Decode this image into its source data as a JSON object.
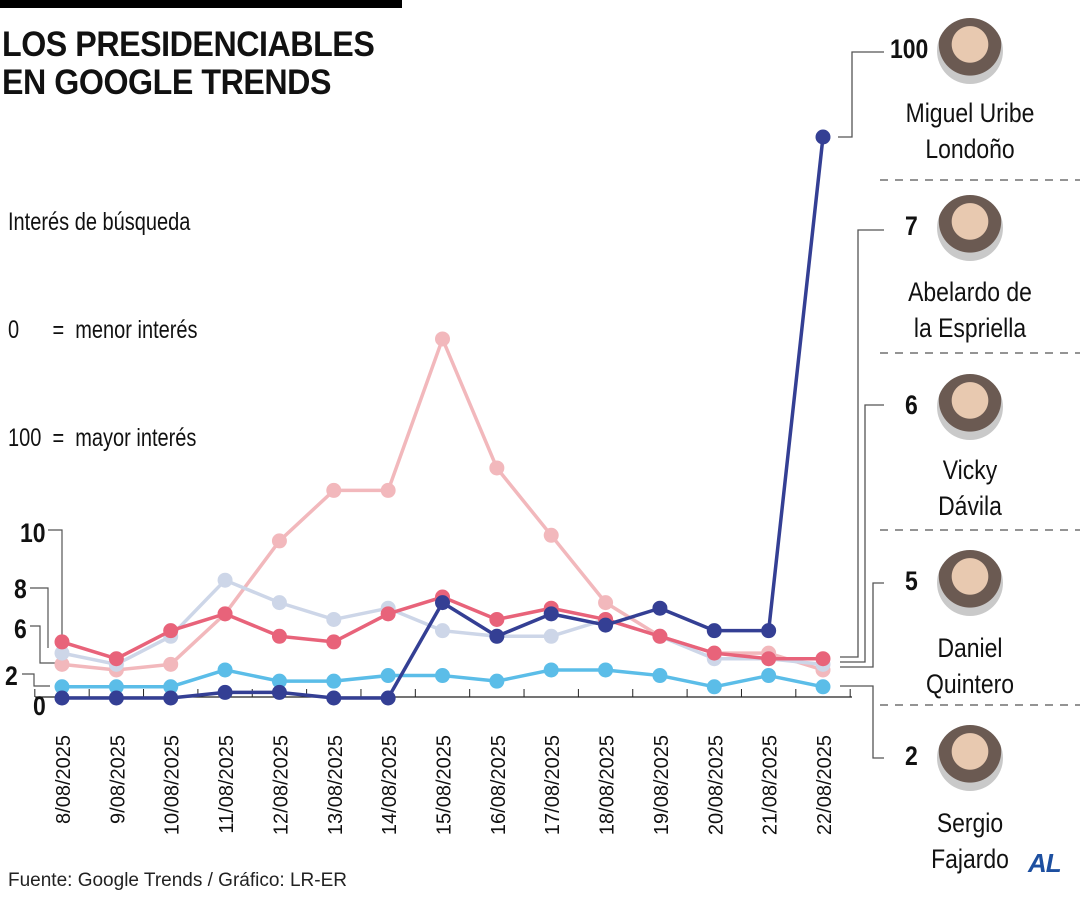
{
  "title_lines": [
    "LOS PRESIDENCIABLES",
    "EN GOOGLE TRENDS"
  ],
  "legend_lines": [
    "Interés de búsqueda",
    "0      =  menor interés",
    "100  =  mayor interés"
  ],
  "source": "Fuente: Google Trends / Gráfico: LR-ER",
  "logo": "AL",
  "chart_data": {
    "type": "line",
    "title": "LOS PRESIDENCIABLES EN GOOGLE TRENDS",
    "ylabel": "Interés de búsqueda",
    "ylim": [
      0,
      100
    ],
    "grid": false,
    "categories": [
      "8/08/2025",
      "9/08/2025",
      "10/08/2025",
      "11/08/2025",
      "12/08/2025",
      "13/08/2025",
      "14/08/2025",
      "15/08/2025",
      "16/08/2025",
      "17/08/2025",
      "18/08/2025",
      "19/08/2025",
      "20/08/2025",
      "21/08/2025",
      "22/08/2025"
    ],
    "start_labels": [
      "10",
      "8",
      "6",
      "2",
      "0"
    ],
    "series": [
      {
        "name": "Daniel Quintero",
        "color": "#f2b8bc",
        "end_label": "5",
        "values": [
          6,
          5,
          6,
          15,
          28,
          37,
          37,
          64,
          41,
          29,
          17,
          11,
          8,
          8,
          5
        ]
      },
      {
        "name": "Vicky Dávila",
        "color": "#cdd6e8",
        "end_label": "6",
        "values": [
          8,
          6,
          11,
          21,
          17,
          14,
          16,
          12,
          11,
          11,
          14,
          11,
          7,
          7,
          6
        ]
      },
      {
        "name": "Abelardo de la Espriella",
        "color": "#e8637a",
        "end_label": "7",
        "values": [
          10,
          7,
          12,
          15,
          11,
          10,
          15,
          18,
          14,
          16,
          14,
          11,
          8,
          7,
          7
        ]
      },
      {
        "name": "Sergio Fajardo",
        "color": "#5bbde8",
        "end_label": "2",
        "values": [
          2,
          2,
          2,
          5,
          3,
          3,
          4,
          4,
          3,
          5,
          5,
          4,
          2,
          4,
          2
        ]
      },
      {
        "name": "Miguel Uribe Londoño",
        "color": "#343f94",
        "end_label": "100",
        "values": [
          0,
          0,
          0,
          1,
          1,
          0,
          0,
          17,
          11,
          15,
          13,
          16,
          12,
          12,
          100
        ]
      }
    ]
  },
  "candidates": [
    {
      "value": "100",
      "name_lines": [
        "Miguel Uribe",
        "Londoño"
      ]
    },
    {
      "value": "7",
      "name_lines": [
        "Abelardo de",
        "la Espriella"
      ]
    },
    {
      "value": "6",
      "name_lines": [
        "Vicky",
        "Dávila"
      ]
    },
    {
      "value": "5",
      "name_lines": [
        "Daniel",
        "Quintero"
      ]
    },
    {
      "value": "2",
      "name_lines": [
        "Sergio",
        "Fajardo"
      ]
    }
  ]
}
